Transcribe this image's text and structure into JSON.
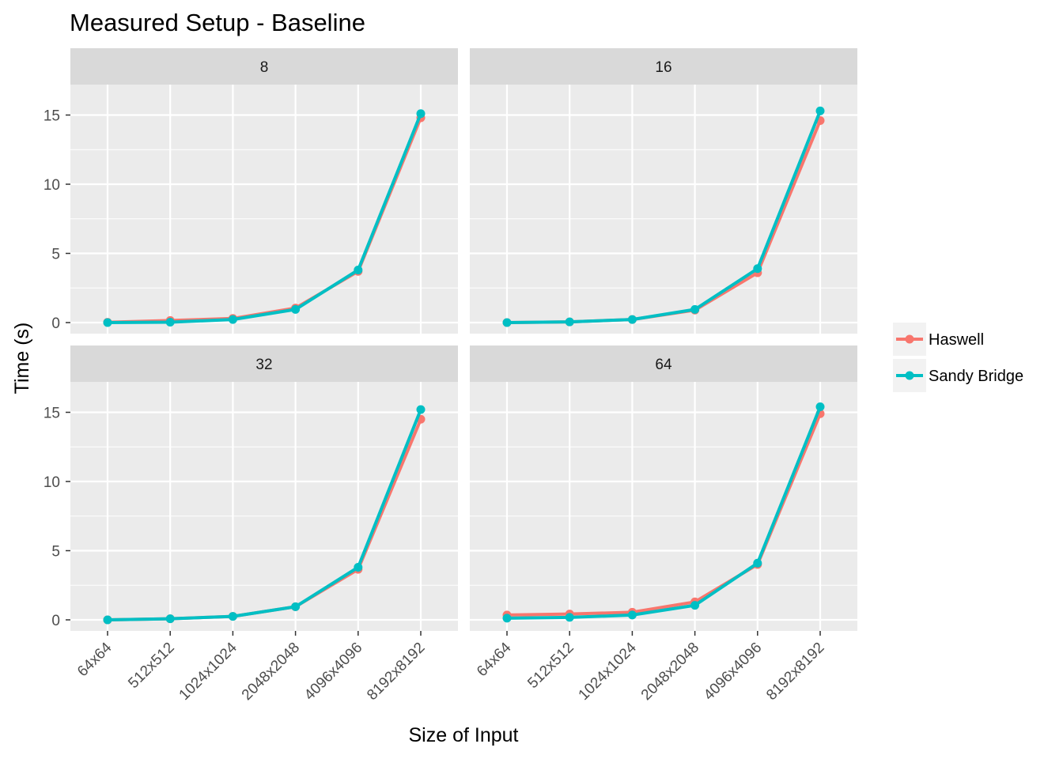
{
  "chart_data": {
    "type": "line",
    "title": "Measured Setup - Baseline",
    "xlabel": "Size of Input",
    "ylabel": "Time (s)",
    "categories": [
      "64x64",
      "512x512",
      "1024x1024",
      "2048x2048",
      "4096x4096",
      "8192x8192"
    ],
    "ylim": [
      -0.8,
      17.2
    ],
    "yticks": [
      0,
      5,
      10,
      15
    ],
    "grid": true,
    "legend_position": "right",
    "series_colors": {
      "Haswell": "#F8766D",
      "Sandy Bridge": "#00BFC4"
    },
    "legend": [
      "Haswell",
      "Sandy Bridge"
    ],
    "facets": [
      {
        "label": "8",
        "series": [
          {
            "name": "Haswell",
            "values": [
              0.02,
              0.15,
              0.3,
              1.05,
              3.7,
              14.8
            ]
          },
          {
            "name": "Sandy Bridge",
            "values": [
              0.0,
              0.03,
              0.22,
              0.95,
              3.8,
              15.1
            ]
          }
        ]
      },
      {
        "label": "16",
        "series": [
          {
            "name": "Haswell",
            "values": [
              0.0,
              0.05,
              0.22,
              0.9,
              3.6,
              14.6
            ]
          },
          {
            "name": "Sandy Bridge",
            "values": [
              0.0,
              0.05,
              0.22,
              0.95,
              3.9,
              15.3
            ]
          }
        ]
      },
      {
        "label": "32",
        "series": [
          {
            "name": "Haswell",
            "values": [
              0.0,
              0.08,
              0.25,
              0.95,
              3.65,
              14.5
            ]
          },
          {
            "name": "Sandy Bridge",
            "values": [
              0.0,
              0.08,
              0.25,
              0.95,
              3.8,
              15.2
            ]
          }
        ]
      },
      {
        "label": "64",
        "series": [
          {
            "name": "Haswell",
            "values": [
              0.35,
              0.42,
              0.55,
              1.3,
              4.0,
              14.9
            ]
          },
          {
            "name": "Sandy Bridge",
            "values": [
              0.12,
              0.18,
              0.35,
              1.05,
              4.1,
              15.4
            ]
          }
        ]
      }
    ]
  }
}
